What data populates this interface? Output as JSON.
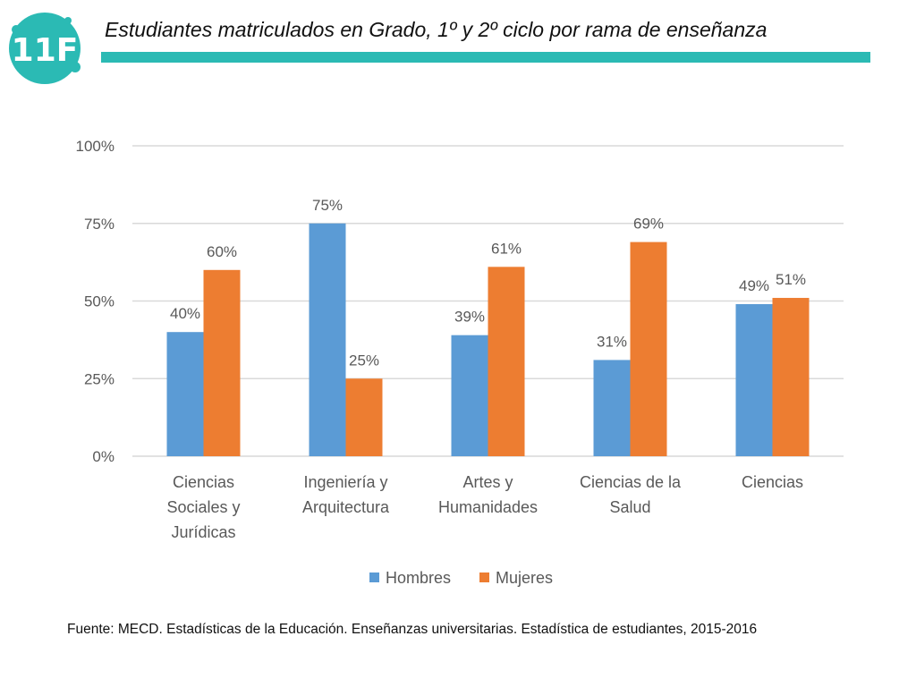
{
  "header": {
    "logo_text": "11F",
    "title": "Estudiantes matriculados en Grado, 1º y 2º ciclo por rama de enseñanza"
  },
  "colors": {
    "accent": "#2bbab4",
    "hombres": "#5b9bd5",
    "mujeres": "#ed7d31",
    "grid": "#d9d9d9",
    "axis_text": "#595959"
  },
  "chart_data": {
    "type": "bar",
    "title": "",
    "xlabel": "",
    "ylabel": "",
    "ylim": [
      0,
      100
    ],
    "yticks": [
      0,
      25,
      50,
      75,
      100
    ],
    "ytick_labels": [
      "0%",
      "25%",
      "50%",
      "75%",
      "100%"
    ],
    "grid": true,
    "legend_position": "bottom",
    "categories": [
      [
        "Ciencias",
        "Sociales y",
        "Jurídicas"
      ],
      [
        "Ingeniería y",
        "Arquitectura"
      ],
      [
        "Artes y",
        "Humanidades"
      ],
      [
        "Ciencias de la",
        "Salud"
      ],
      [
        "Ciencias"
      ]
    ],
    "series": [
      {
        "name": "Hombres",
        "color": "#5b9bd5",
        "values": [
          40,
          75,
          39,
          31,
          49
        ],
        "labels": [
          "40%",
          "75%",
          "39%",
          "31%",
          "49%"
        ]
      },
      {
        "name": "Mujeres",
        "color": "#ed7d31",
        "values": [
          60,
          25,
          61,
          69,
          51
        ],
        "labels": [
          "60%",
          "25%",
          "61%",
          "69%",
          "51%"
        ]
      }
    ]
  },
  "footer": {
    "source": "Fuente: MECD. Estadísticas de la Educación. Enseñanzas universitarias. Estadística de estudiantes, 2015-2016"
  }
}
